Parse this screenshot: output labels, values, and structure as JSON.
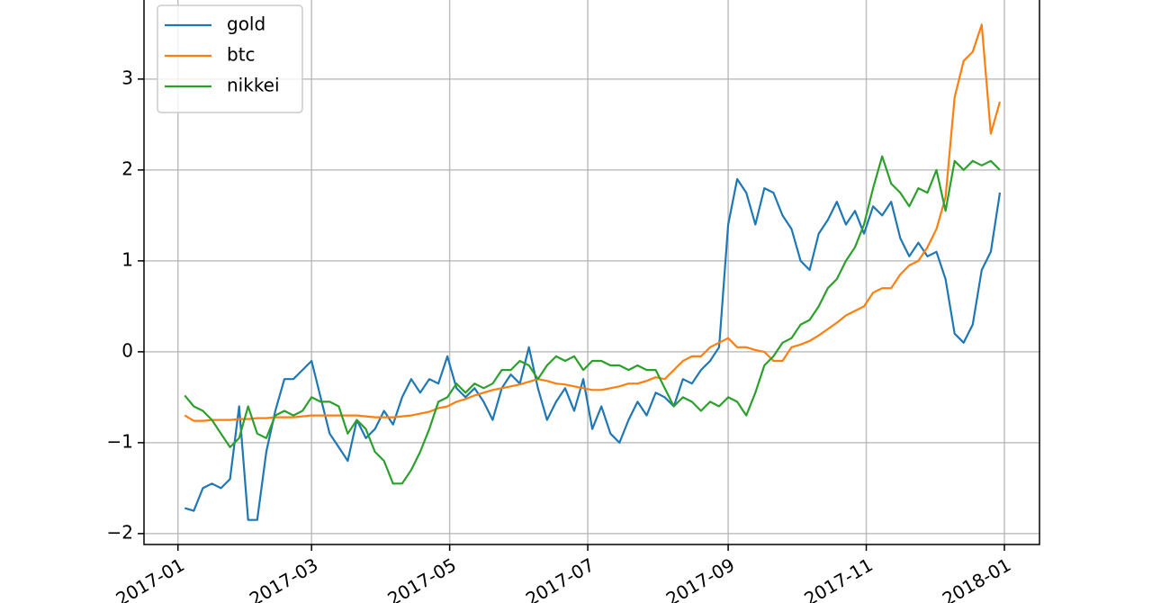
{
  "chart_data": {
    "type": "line",
    "x": [
      3,
      7,
      11,
      15,
      19,
      23,
      27,
      31,
      35,
      39,
      43,
      47,
      51,
      55,
      59,
      63,
      67,
      71,
      75,
      79,
      83,
      87,
      91,
      95,
      99,
      103,
      107,
      111,
      115,
      119,
      123,
      127,
      131,
      135,
      139,
      143,
      147,
      151,
      155,
      159,
      163,
      167,
      171,
      175,
      179,
      183,
      187,
      191,
      195,
      199,
      203,
      207,
      211,
      215,
      219,
      223,
      227,
      231,
      235,
      239,
      243,
      247,
      251,
      255,
      259,
      263,
      267,
      271,
      275,
      279,
      283,
      287,
      291,
      295,
      299,
      303,
      307,
      311,
      315,
      319,
      323,
      327,
      331,
      335,
      339,
      343,
      347,
      351,
      355,
      359,
      363
    ],
    "series": [
      {
        "name": "gold",
        "color": "#1f77b4",
        "values": [
          -1.72,
          -1.75,
          -1.5,
          -1.45,
          -1.5,
          -1.4,
          -0.6,
          -1.85,
          -1.85,
          -1.1,
          -0.65,
          -0.3,
          -0.3,
          -0.2,
          -0.1,
          -0.5,
          -0.9,
          -1.05,
          -1.2,
          -0.75,
          -0.95,
          -0.85,
          -0.65,
          -0.8,
          -0.5,
          -0.3,
          -0.45,
          -0.3,
          -0.35,
          -0.05,
          -0.4,
          -0.5,
          -0.4,
          -0.55,
          -0.75,
          -0.4,
          -0.25,
          -0.35,
          0.05,
          -0.4,
          -0.75,
          -0.55,
          -0.4,
          -0.65,
          -0.3,
          -0.85,
          -0.6,
          -0.9,
          -1.0,
          -0.75,
          -0.55,
          -0.7,
          -0.45,
          -0.5,
          -0.6,
          -0.3,
          -0.35,
          -0.2,
          -0.1,
          0.05,
          1.4,
          1.9,
          1.75,
          1.4,
          1.8,
          1.75,
          1.5,
          1.35,
          1.0,
          0.9,
          1.3,
          1.45,
          1.65,
          1.4,
          1.55,
          1.3,
          1.6,
          1.5,
          1.65,
          1.25,
          1.05,
          1.2,
          1.05,
          1.1,
          0.8,
          0.2,
          0.1,
          0.3,
          0.9,
          1.1,
          1.75
        ]
      },
      {
        "name": "btc",
        "color": "#ff7f0e",
        "values": [
          -0.7,
          -0.76,
          -0.76,
          -0.75,
          -0.75,
          -0.75,
          -0.74,
          -0.74,
          -0.73,
          -0.73,
          -0.72,
          -0.72,
          -0.72,
          -0.71,
          -0.7,
          -0.7,
          -0.7,
          -0.7,
          -0.7,
          -0.7,
          -0.71,
          -0.72,
          -0.72,
          -0.72,
          -0.71,
          -0.7,
          -0.68,
          -0.66,
          -0.62,
          -0.6,
          -0.55,
          -0.52,
          -0.48,
          -0.45,
          -0.42,
          -0.4,
          -0.38,
          -0.36,
          -0.33,
          -0.3,
          -0.32,
          -0.35,
          -0.36,
          -0.38,
          -0.4,
          -0.42,
          -0.42,
          -0.4,
          -0.38,
          -0.35,
          -0.35,
          -0.32,
          -0.28,
          -0.3,
          -0.2,
          -0.1,
          -0.05,
          -0.05,
          0.05,
          0.1,
          0.15,
          0.05,
          0.05,
          0.02,
          0.0,
          -0.1,
          -0.1,
          0.05,
          0.08,
          0.12,
          0.18,
          0.25,
          0.32,
          0.4,
          0.45,
          0.5,
          0.65,
          0.7,
          0.7,
          0.85,
          0.95,
          1.0,
          1.15,
          1.35,
          1.7,
          2.8,
          3.2,
          3.3,
          3.6,
          2.4,
          2.75
        ]
      },
      {
        "name": "nikkei",
        "color": "#2ca02c",
        "values": [
          -0.48,
          -0.6,
          -0.65,
          -0.75,
          -0.9,
          -1.05,
          -0.95,
          -0.6,
          -0.9,
          -0.95,
          -0.7,
          -0.65,
          -0.7,
          -0.65,
          -0.5,
          -0.55,
          -0.55,
          -0.6,
          -0.9,
          -0.75,
          -0.85,
          -1.1,
          -1.2,
          -1.45,
          -1.45,
          -1.3,
          -1.1,
          -0.85,
          -0.55,
          -0.5,
          -0.35,
          -0.45,
          -0.35,
          -0.4,
          -0.35,
          -0.2,
          -0.2,
          -0.1,
          -0.15,
          -0.3,
          -0.15,
          -0.05,
          -0.1,
          -0.05,
          -0.2,
          -0.1,
          -0.1,
          -0.15,
          -0.15,
          -0.2,
          -0.15,
          -0.2,
          -0.2,
          -0.4,
          -0.6,
          -0.5,
          -0.55,
          -0.65,
          -0.55,
          -0.6,
          -0.5,
          -0.55,
          -0.7,
          -0.45,
          -0.15,
          -0.05,
          0.1,
          0.15,
          0.3,
          0.35,
          0.5,
          0.7,
          0.8,
          1.0,
          1.15,
          1.4,
          1.8,
          2.15,
          1.85,
          1.75,
          1.6,
          1.8,
          1.75,
          2.0,
          1.55,
          2.1,
          2.0,
          2.1,
          2.05,
          2.1,
          2.0
        ]
      }
    ],
    "xlim": [
      -15,
      380.5
    ],
    "xticks": [
      {
        "value": 0,
        "label": "2017-01"
      },
      {
        "value": 59,
        "label": "2017-03"
      },
      {
        "value": 120,
        "label": "2017-05"
      },
      {
        "value": 181,
        "label": "2017-07"
      },
      {
        "value": 243,
        "label": "2017-09"
      },
      {
        "value": 304,
        "label": "2017-11"
      },
      {
        "value": 365,
        "label": "2018-01"
      }
    ],
    "ylim": [
      -2.12,
      3.87
    ],
    "yticks": [
      {
        "value": -2,
        "label": "−2"
      },
      {
        "value": -1,
        "label": "−1"
      },
      0,
      1,
      2,
      3
    ],
    "grid": true,
    "legend": "upper left"
  }
}
